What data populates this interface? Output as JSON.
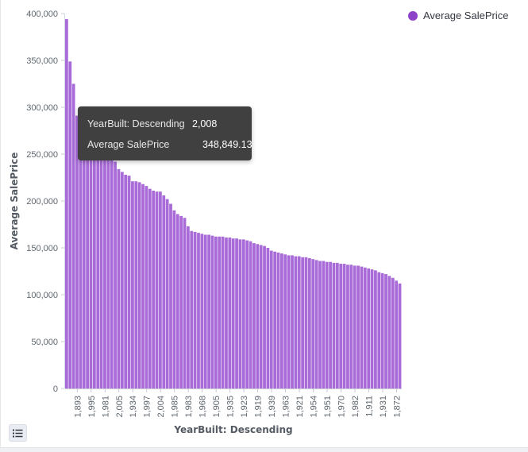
{
  "legend": {
    "label": "Average SalePrice",
    "color": "#8e44c9"
  },
  "tooltip": {
    "rows": [
      {
        "key": "YearBuilt: Descending",
        "value": "2,008"
      },
      {
        "key": "Average SalePrice",
        "value": "348,849.13"
      }
    ]
  },
  "toolbar": {
    "legend_toggle_icon": "list-icon"
  },
  "chart_data": {
    "type": "bar",
    "xlabel": "YearBuilt: Descending",
    "ylabel": "Average SalePrice",
    "ylim": [
      0,
      400000
    ],
    "yticks": [
      0,
      50000,
      100000,
      150000,
      200000,
      250000,
      300000,
      350000,
      400000
    ],
    "ytick_labels": [
      "0",
      "50,000",
      "100,000",
      "150,000",
      "200,000",
      "250,000",
      "300,000",
      "350,000",
      "400,000"
    ],
    "bar_color": "#a86bd8",
    "grid": false,
    "legend_position": "top-right",
    "x_tick_labels": [
      {
        "index": 3,
        "label": "1,893"
      },
      {
        "index": 7,
        "label": "1,995"
      },
      {
        "index": 11,
        "label": "1,981"
      },
      {
        "index": 15,
        "label": "2,005"
      },
      {
        "index": 19,
        "label": "1,934"
      },
      {
        "index": 23,
        "label": "1,997"
      },
      {
        "index": 27,
        "label": "2,004"
      },
      {
        "index": 31,
        "label": "1,985"
      },
      {
        "index": 35,
        "label": "1,983"
      },
      {
        "index": 39,
        "label": "1,968"
      },
      {
        "index": 43,
        "label": "1,905"
      },
      {
        "index": 47,
        "label": "1,935"
      },
      {
        "index": 51,
        "label": "1,923"
      },
      {
        "index": 55,
        "label": "1,919"
      },
      {
        "index": 59,
        "label": "1,939"
      },
      {
        "index": 63,
        "label": "1,963"
      },
      {
        "index": 67,
        "label": "1,921"
      },
      {
        "index": 71,
        "label": "1,954"
      },
      {
        "index": 75,
        "label": "1,951"
      },
      {
        "index": 79,
        "label": "1,970"
      },
      {
        "index": 83,
        "label": "1,982"
      },
      {
        "index": 87,
        "label": "1,911"
      },
      {
        "index": 91,
        "label": "1,931"
      },
      {
        "index": 95,
        "label": "1,872"
      }
    ],
    "values": [
      394000,
      348849.13,
      325000,
      291000,
      289000,
      287000,
      286000,
      283000,
      282000,
      281000,
      280000,
      275000,
      270000,
      246000,
      242000,
      234000,
      231000,
      228000,
      227000,
      221000,
      221000,
      220000,
      218000,
      216000,
      213000,
      211000,
      210000,
      210000,
      206000,
      202000,
      197000,
      190000,
      186000,
      184000,
      182000,
      173000,
      168000,
      167000,
      166000,
      165000,
      164000,
      164000,
      163000,
      162000,
      162000,
      162000,
      161000,
      161000,
      160000,
      160000,
      159000,
      159000,
      158000,
      157000,
      155000,
      154000,
      153000,
      152000,
      150000,
      147000,
      146000,
      145000,
      144000,
      143000,
      142000,
      142000,
      141000,
      141000,
      140000,
      140000,
      139000,
      138000,
      137000,
      136000,
      136000,
      135000,
      135000,
      134000,
      134000,
      133000,
      133000,
      132000,
      132000,
      131000,
      131000,
      130000,
      129000,
      128000,
      127000,
      126000,
      124000,
      123000,
      122000,
      120000,
      118000,
      115000,
      112000
    ]
  }
}
